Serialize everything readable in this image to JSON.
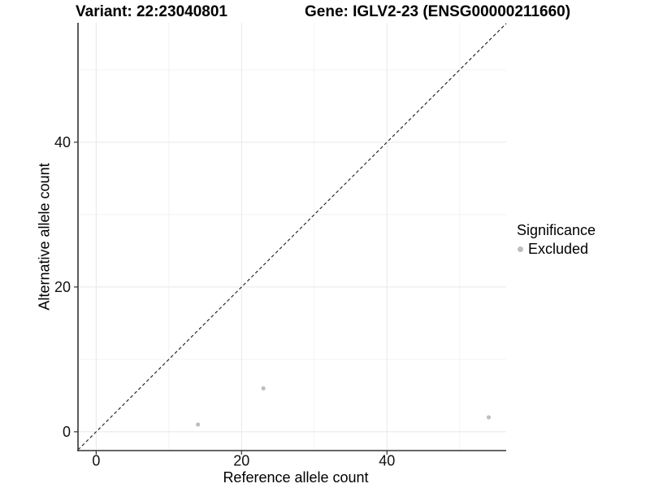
{
  "header": {
    "variant_title": "Variant: 22:23040801",
    "gene_title": "Gene: IGLV2-23 (ENSG00000211660)"
  },
  "legend": {
    "title": "Significance",
    "items": [
      {
        "label": "Excluded",
        "color": "#bebebe"
      }
    ]
  },
  "chart_data": {
    "type": "scatter",
    "title": "Variant: 22:23040801 — Gene: IGLV2-23 (ENSG00000211660)",
    "xlabel": "Reference allele count",
    "ylabel": "Alternative allele count",
    "xlim": [
      -2.5,
      56.4
    ],
    "ylim": [
      -2.6,
      56.5
    ],
    "x_ticks": [
      0,
      20,
      40
    ],
    "y_ticks": [
      0,
      20,
      40
    ],
    "x_minor_gridlines": [
      10,
      30,
      50
    ],
    "y_minor_gridlines": [
      10,
      30,
      50
    ],
    "grid": "major-and-minor",
    "legend_position": "right",
    "series": [
      {
        "name": "Excluded",
        "color": "#bebebe",
        "point_radius": 2.6,
        "points": [
          {
            "x": 14,
            "y": 1
          },
          {
            "x": 23,
            "y": 6
          },
          {
            "x": 54,
            "y": 2
          }
        ]
      }
    ],
    "reference_line": {
      "type": "identity y=x",
      "style": "dashed",
      "color": "#1a1a1a"
    }
  },
  "colors": {
    "background": "#ffffff",
    "grid_major": "#e8e8e8",
    "grid_minor": "#f3f3f3",
    "axis_line": "#333333",
    "tick_text": "#111111",
    "point": "#bebebe"
  }
}
